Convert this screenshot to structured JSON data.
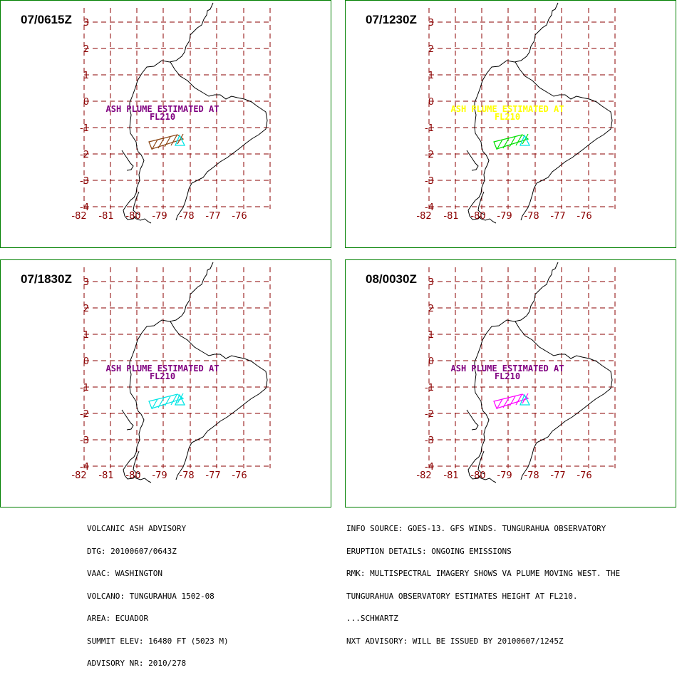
{
  "panels": [
    {
      "time": "07/0615Z",
      "annotation_line1": "ASH PLUME ESTIMATED AT",
      "annotation_line2": "FL210",
      "annotation_color": "#800080",
      "plume_color": "#8b4513",
      "volcano_color": "#00e5e5"
    },
    {
      "time": "07/1230Z",
      "annotation_line1": "ASH PLUME ESTIMATED AT",
      "annotation_line2": "FL210",
      "annotation_color": "#ffff00",
      "plume_color": "#00e000",
      "volcano_color": "#00e5e5"
    },
    {
      "time": "07/1830Z",
      "annotation_line1": "ASH PLUME ESTIMATED AT",
      "annotation_line2": "FL210",
      "annotation_color": "#800080",
      "plume_color": "#00e5e5",
      "volcano_color": "#00e5e5"
    },
    {
      "time": "08/0030Z",
      "annotation_line1": "ASH PLUME ESTIMATED AT",
      "annotation_line2": "FL210",
      "annotation_color": "#800080",
      "plume_color": "#ff00ff",
      "volcano_color": "#00e5e5"
    }
  ],
  "axes": {
    "lon_labels": [
      "-82",
      "-81",
      "-80",
      "-79",
      "-78",
      "-77",
      "-76"
    ],
    "lat_labels": [
      "3",
      "2",
      "1",
      "0",
      "-1",
      "-2",
      "-3",
      "-4"
    ],
    "grid_color": "#8b0000",
    "coast_color": "#000000"
  },
  "advisory_left": [
    "VOLCANIC ASH ADVISORY",
    "DTG: 20100607/0643Z",
    "VAAC: WASHINGTON",
    "VOLCANO: TUNGURAHUA 1502-08",
    "AREA: ECUADOR",
    "SUMMIT ELEV: 16480 FT (5023 M)",
    "ADVISORY NR: 2010/278"
  ],
  "advisory_right": [
    "INFO SOURCE: GOES-13. GFS WINDS. TUNGURAHUA OBSERVATORY",
    "ERUPTION DETAILS: ONGOING EMISSIONS",
    "RMK: MULTISPECTRAL IMAGERY SHOWS VA PLUME MOVING WEST. THE",
    "TUNGURAHUA OBSERVATORY ESTIMATES HEIGHT AT FL210.",
    "...SCHWARTZ",
    "NXT ADVISORY: WILL BE ISSUED BY 20100607/1245Z"
  ]
}
